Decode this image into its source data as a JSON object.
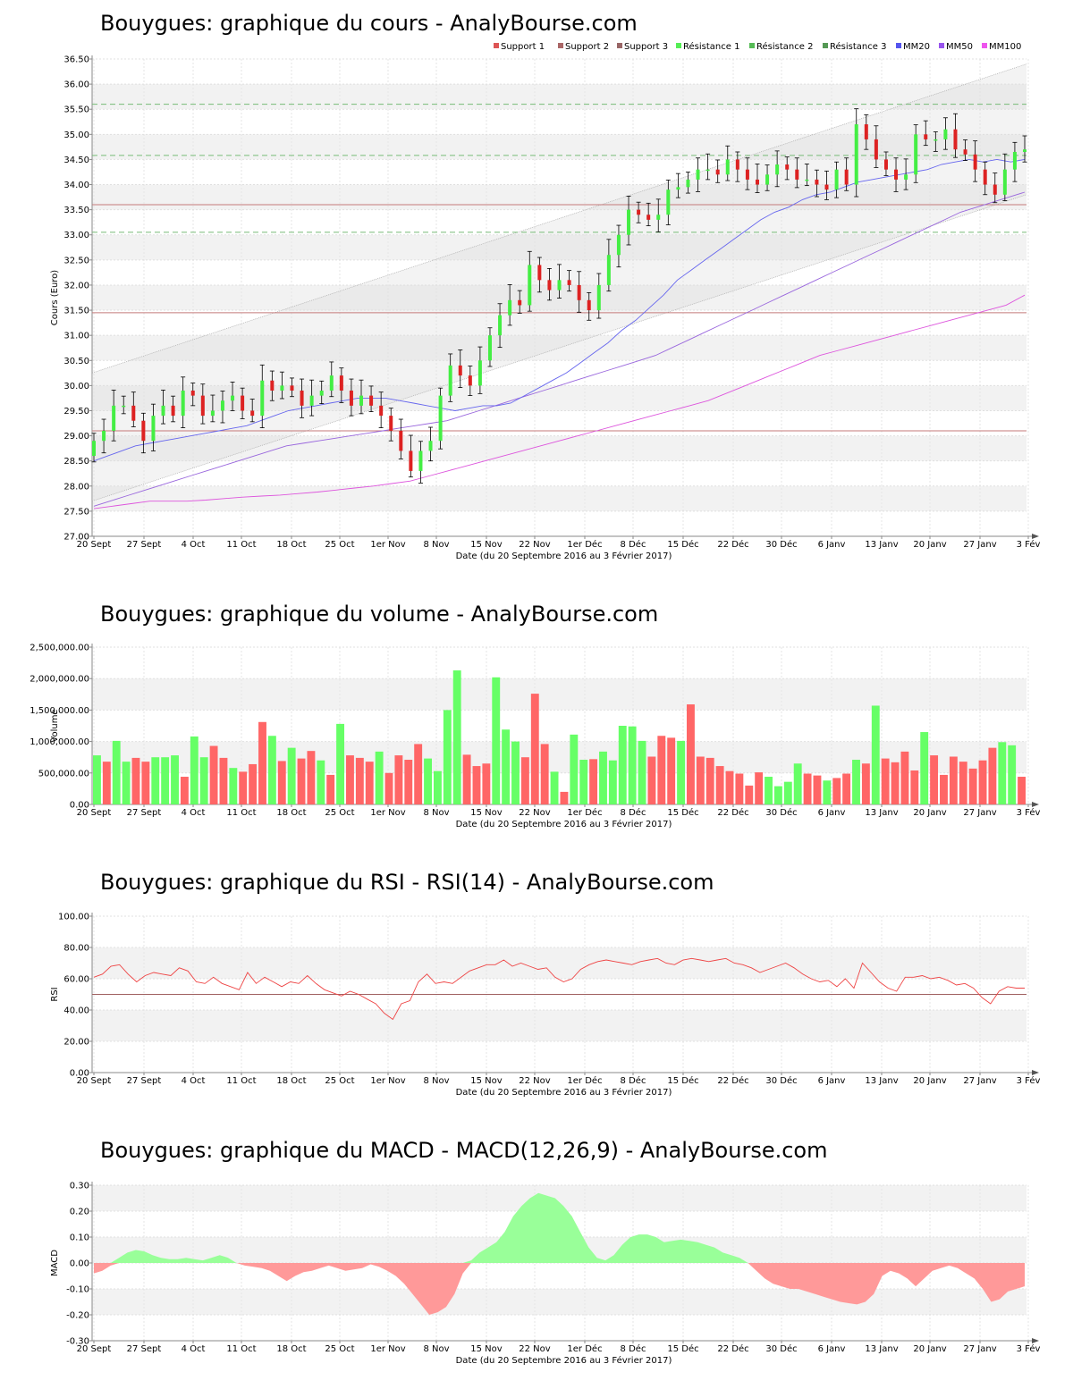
{
  "x_axis": {
    "label": "Date (du 20 Septembre 2016 au 3 Février 2017)",
    "ticks": [
      "20 Sept",
      "27 Sept",
      "4 Oct",
      "11 Oct",
      "18 Oct",
      "25 Oct",
      "1er Nov",
      "8 Nov",
      "15 Nov",
      "22 Nov",
      "1er Déc",
      "8 Déc",
      "15 Déc",
      "22 Déc",
      "30 Déc",
      "6 Janv",
      "13 Janv",
      "20 Janv",
      "27 Janv",
      "3 Fév"
    ]
  },
  "colors": {
    "up": "#44ee44",
    "down": "#dd2222",
    "support": "#c47a7a",
    "resistance": "#77bb77",
    "mm20": "#6666ee",
    "mm50": "#9966dd",
    "mm100": "#dd55dd",
    "rsi": "#ee4444",
    "macd_pos": "#99ff99",
    "macd_neg": "#ff9999",
    "vol_up": "#66ff66",
    "vol_down": "#ff6666"
  },
  "chart_data": [
    {
      "type": "candlestick",
      "title": "Bouygues: graphique du cours - AnalyBourse.com",
      "ylabel": "Cours (Euro)",
      "ylim": [
        27.0,
        36.5
      ],
      "yticks": [
        "27.00",
        "27.50",
        "28.00",
        "28.50",
        "29.00",
        "29.50",
        "30.00",
        "30.50",
        "31.00",
        "31.50",
        "32.00",
        "32.50",
        "33.00",
        "33.50",
        "34.00",
        "34.50",
        "35.00",
        "35.50",
        "36.00",
        "36.50"
      ],
      "legend": [
        {
          "name": "Support 1",
          "color": "#dd5555"
        },
        {
          "name": "Support 2",
          "color": "#aa6666"
        },
        {
          "name": "Support 3",
          "color": "#996666"
        },
        {
          "name": "Résistance 1",
          "color": "#55ee55"
        },
        {
          "name": "Résistance 2",
          "color": "#55bb55"
        },
        {
          "name": "Résistance 3",
          "color": "#559955"
        },
        {
          "name": "MM20",
          "color": "#5555ee"
        },
        {
          "name": "MM50",
          "color": "#9955ee"
        },
        {
          "name": "MM100",
          "color": "#ee55ee"
        }
      ],
      "supports": [
        33.6,
        31.45,
        29.1
      ],
      "resistances": [
        35.6,
        34.58,
        33.05
      ],
      "closes": [
        28.9,
        29.1,
        29.6,
        29.6,
        29.3,
        28.9,
        29.4,
        29.6,
        29.4,
        29.9,
        29.8,
        29.4,
        29.5,
        29.7,
        29.8,
        29.5,
        29.4,
        30.1,
        29.9,
        30.0,
        29.9,
        29.6,
        29.8,
        29.9,
        30.2,
        29.9,
        29.6,
        29.8,
        29.6,
        29.4,
        29.1,
        28.7,
        28.3,
        28.7,
        28.9,
        29.8,
        30.4,
        30.2,
        30.0,
        30.5,
        31.0,
        31.4,
        31.7,
        31.6,
        32.4,
        32.1,
        31.9,
        32.1,
        32.0,
        31.7,
        31.5,
        32.0,
        32.6,
        33.0,
        33.5,
        33.4,
        33.3,
        33.4,
        33.9,
        33.95,
        34.1,
        34.3,
        34.3,
        34.2,
        34.5,
        34.3,
        34.1,
        34.0,
        34.2,
        34.4,
        34.3,
        34.1,
        34.1,
        34.0,
        33.9,
        34.3,
        34.0,
        35.2,
        34.9,
        34.5,
        34.3,
        34.1,
        34.2,
        35.0,
        34.9,
        34.9,
        35.1,
        34.7,
        34.6,
        34.3,
        34.0,
        33.8,
        34.3,
        34.65,
        34.7
      ],
      "mm20": [
        28.5,
        28.6,
        28.7,
        28.8,
        28.85,
        28.9,
        28.95,
        29.0,
        29.05,
        29.1,
        29.15,
        29.2,
        29.3,
        29.4,
        29.5,
        29.55,
        29.6,
        29.65,
        29.7,
        29.75,
        29.75,
        29.75,
        29.7,
        29.65,
        29.6,
        29.55,
        29.5,
        29.55,
        29.6,
        29.6,
        29.65,
        29.8,
        29.95,
        30.1,
        30.25,
        30.45,
        30.65,
        30.85,
        31.1,
        31.3,
        31.55,
        31.8,
        32.1,
        32.3,
        32.5,
        32.7,
        32.9,
        33.1,
        33.3,
        33.45,
        33.55,
        33.7,
        33.8,
        33.85,
        33.95,
        34.05,
        34.1,
        34.15,
        34.2,
        34.25,
        34.3,
        34.4,
        34.45,
        34.5,
        34.45,
        34.5,
        34.45,
        34.5
      ],
      "mm50": [
        27.6,
        27.7,
        27.8,
        27.9,
        28.0,
        28.1,
        28.2,
        28.3,
        28.4,
        28.5,
        28.6,
        28.7,
        28.8,
        28.85,
        28.9,
        28.95,
        29.0,
        29.05,
        29.1,
        29.15,
        29.2,
        29.25,
        29.3,
        29.4,
        29.5,
        29.6,
        29.7,
        29.8,
        29.9,
        30.0,
        30.1,
        30.2,
        30.3,
        30.4,
        30.5,
        30.6,
        30.75,
        30.9,
        31.05,
        31.2,
        31.35,
        31.5,
        31.65,
        31.8,
        31.95,
        32.1,
        32.25,
        32.4,
        32.55,
        32.7,
        32.85,
        33.0,
        33.15,
        33.3,
        33.45,
        33.55,
        33.65,
        33.75,
        33.85
      ],
      "mm100": [
        27.55,
        27.6,
        27.65,
        27.7,
        27.7,
        27.7,
        27.72,
        27.75,
        27.78,
        27.8,
        27.82,
        27.85,
        27.88,
        27.92,
        27.96,
        28.0,
        28.05,
        28.1,
        28.2,
        28.3,
        28.4,
        28.5,
        28.6,
        28.7,
        28.8,
        28.9,
        29.0,
        29.1,
        29.2,
        29.3,
        29.4,
        29.5,
        29.6,
        29.7,
        29.85,
        30.0,
        30.15,
        30.3,
        30.45,
        30.6,
        30.7,
        30.8,
        30.9,
        31.0,
        31.1,
        31.2,
        31.3,
        31.4,
        31.5,
        31.6,
        31.8
      ],
      "channel": {
        "upper": [
          30.25,
          36.4
        ],
        "lower": [
          27.7,
          33.8
        ]
      }
    },
    {
      "type": "bar",
      "title": "Bouygues: graphique du volume - AnalyBourse.com",
      "ylabel": "Volume",
      "ylim": [
        0,
        2500000
      ],
      "yticks": [
        "0.00",
        "500,000.00",
        "1,000,000.00",
        "1,500,000.00",
        "2,000,000.00",
        "2,500,000.00"
      ],
      "values": [
        780000,
        680000,
        1010000,
        680000,
        740000,
        680000,
        750000,
        750000,
        780000,
        440000,
        1080000,
        750000,
        930000,
        740000,
        580000,
        520000,
        640000,
        1310000,
        1090000,
        690000,
        900000,
        730000,
        850000,
        700000,
        470000,
        1280000,
        780000,
        740000,
        680000,
        840000,
        500000,
        780000,
        710000,
        960000,
        730000,
        530000,
        1500000,
        2130000,
        790000,
        610000,
        650000,
        2020000,
        1190000,
        1000000,
        750000,
        1760000,
        960000,
        520000,
        200000,
        1110000,
        710000,
        720000,
        840000,
        700000,
        1250000,
        1240000,
        1010000,
        760000,
        1090000,
        1060000,
        1010000,
        1590000,
        760000,
        740000,
        610000,
        530000,
        490000,
        300000,
        510000,
        440000,
        290000,
        360000,
        650000,
        490000,
        460000,
        380000,
        420000,
        490000,
        710000,
        650000,
        1570000,
        730000,
        670000,
        840000,
        540000,
        1150000,
        780000,
        470000,
        760000,
        680000,
        570000,
        700000,
        900000,
        990000,
        940000,
        440000
      ],
      "up": [
        1,
        0,
        1,
        1,
        0,
        0,
        1,
        1,
        1,
        0,
        1,
        1,
        0,
        0,
        1,
        0,
        0,
        0,
        1,
        0,
        1,
        0,
        0,
        1,
        0,
        1,
        0,
        0,
        0,
        1,
        0,
        0,
        0,
        0,
        1,
        1,
        1,
        1,
        0,
        0,
        0,
        1,
        1,
        1,
        0,
        0,
        0,
        1,
        0,
        1,
        1,
        0,
        1,
        1,
        1,
        1,
        1,
        0,
        0,
        0,
        1,
        0,
        0,
        0,
        0,
        0,
        0,
        0,
        0,
        1,
        1,
        1,
        1,
        0,
        0,
        1,
        0,
        0,
        1,
        0,
        1,
        0,
        0,
        0,
        0,
        1,
        0,
        0,
        0,
        0,
        0,
        0,
        0,
        1,
        1,
        0
      ]
    },
    {
      "type": "line",
      "title": "Bouygues: graphique du RSI - RSI(14) - AnalyBourse.com",
      "ylabel": "RSI",
      "ylim": [
        0,
        100
      ],
      "yticks": [
        "0.00",
        "20.00",
        "40.00",
        "60.00",
        "80.00",
        "100.00"
      ],
      "ref": 50,
      "values": [
        61,
        63,
        68,
        69,
        63,
        58,
        62,
        64,
        63,
        62,
        67,
        65,
        58,
        57,
        61,
        57,
        55,
        53,
        64,
        57,
        61,
        58,
        55,
        58,
        57,
        62,
        57,
        53,
        51,
        49,
        52,
        50,
        47,
        44,
        38,
        34,
        44,
        46,
        58,
        63,
        57,
        58,
        57,
        61,
        65,
        67,
        69,
        69,
        72,
        68,
        70,
        68,
        66,
        67,
        61,
        58,
        60,
        66,
        69,
        71,
        72,
        71,
        70,
        69,
        71,
        72,
        73,
        70,
        69,
        72,
        73,
        72,
        71,
        72,
        73,
        70,
        69,
        67,
        64,
        66,
        68,
        70,
        67,
        63,
        60,
        58,
        59,
        55,
        60,
        54,
        70,
        64,
        58,
        54,
        52,
        61,
        61,
        62,
        60,
        61,
        59,
        56,
        57,
        54,
        48,
        44,
        52,
        55,
        54,
        54
      ]
    },
    {
      "type": "area",
      "title": "Bouygues: graphique du MACD - MACD(12,26,9) - AnalyBourse.com",
      "ylabel": "MACD",
      "ylim": [
        -0.3,
        0.3
      ],
      "yticks": [
        "-0.30",
        "-0.20",
        "-0.10",
        "0.00",
        "0.10",
        "0.20",
        "0.30"
      ],
      "values": [
        -0.04,
        -0.03,
        -0.01,
        0.02,
        0.04,
        0.05,
        0.045,
        0.03,
        0.02,
        0.015,
        0.015,
        0.02,
        0.015,
        0.01,
        0.02,
        0.03,
        0.02,
        0.0,
        -0.01,
        -0.015,
        -0.02,
        -0.03,
        -0.05,
        -0.07,
        -0.05,
        -0.035,
        -0.03,
        -0.02,
        -0.01,
        -0.02,
        -0.03,
        -0.025,
        -0.02,
        -0.005,
        -0.015,
        -0.03,
        -0.05,
        -0.08,
        -0.12,
        -0.16,
        -0.2,
        -0.19,
        -0.17,
        -0.12,
        -0.04,
        0.01,
        0.04,
        0.06,
        0.08,
        0.12,
        0.18,
        0.22,
        0.25,
        0.27,
        0.26,
        0.25,
        0.22,
        0.18,
        0.12,
        0.06,
        0.02,
        0.01,
        0.03,
        0.07,
        0.1,
        0.11,
        0.11,
        0.1,
        0.08,
        0.085,
        0.09,
        0.085,
        0.08,
        0.07,
        0.06,
        0.04,
        0.03,
        0.02,
        0.0,
        -0.03,
        -0.06,
        -0.08,
        -0.09,
        -0.1,
        -0.1,
        -0.11,
        -0.12,
        -0.13,
        -0.14,
        -0.15,
        -0.155,
        -0.16,
        -0.15,
        -0.12,
        -0.05,
        -0.03,
        -0.04,
        -0.06,
        -0.09,
        -0.06,
        -0.03,
        -0.02,
        -0.01,
        -0.02,
        -0.04,
        -0.06,
        -0.1,
        -0.15,
        -0.14,
        -0.11,
        -0.1,
        -0.09
      ]
    }
  ]
}
